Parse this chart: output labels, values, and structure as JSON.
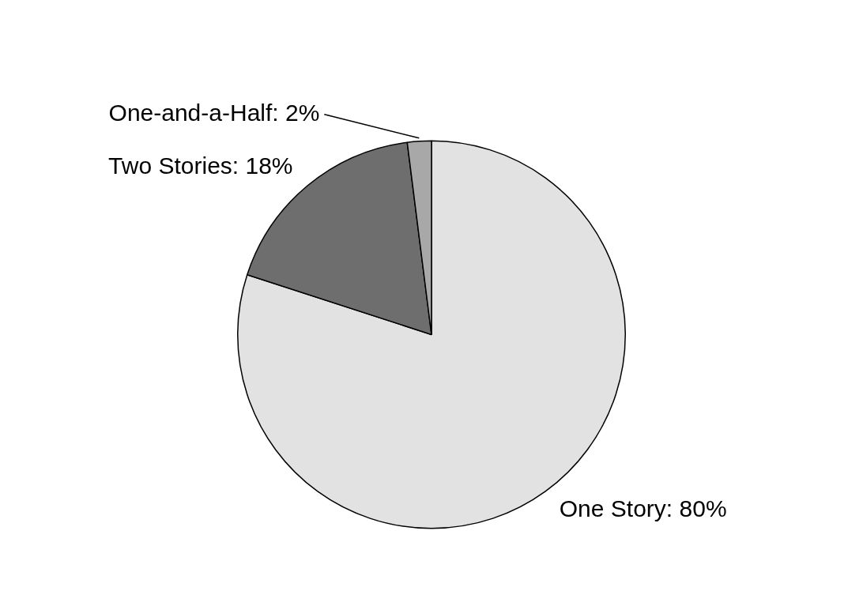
{
  "chart_data": {
    "type": "pie",
    "categories": [
      "One Story",
      "Two Stories",
      "One-and-a-Half"
    ],
    "values": [
      80,
      18,
      2
    ],
    "value_labels": [
      "80%",
      "18%",
      "2%"
    ],
    "colors": [
      "#e2e2e2",
      "#6e6e6e",
      "#a8a8a8"
    ],
    "legend": false
  }
}
